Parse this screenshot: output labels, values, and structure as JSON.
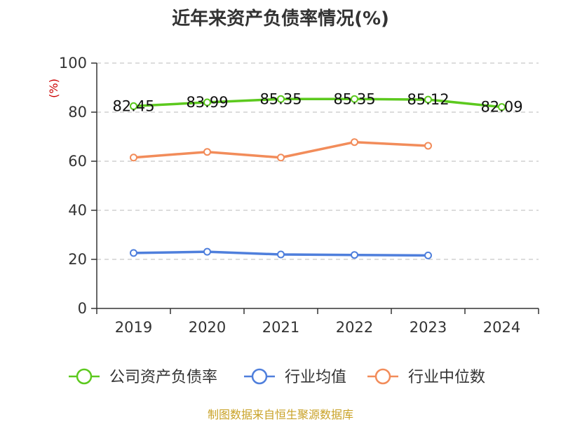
{
  "chart_data": {
    "type": "line",
    "title": "近年来资产负债率情况(%)",
    "ylabel": "(%)",
    "categories": [
      "2019",
      "2020",
      "2021",
      "2022",
      "2023",
      "2024"
    ],
    "ylim": [
      0,
      100
    ],
    "yticks": [
      0,
      20,
      40,
      60,
      80,
      100
    ],
    "grid": true,
    "legend_position": "bottom",
    "series": [
      {
        "name": "公司资产负债率",
        "color": "#5cc91e",
        "values": [
          82.45,
          83.99,
          85.35,
          85.35,
          85.12,
          82.09
        ],
        "labels": [
          "82.45",
          "83.99",
          "85.35",
          "85.35",
          "85.12",
          "82.09"
        ]
      },
      {
        "name": "行业均值",
        "color": "#4f7fdc",
        "values": [
          22.6,
          23.1,
          22.0,
          21.8,
          21.6,
          null
        ]
      },
      {
        "name": "行业中位数",
        "color": "#f28c5a",
        "values": [
          61.5,
          63.8,
          61.5,
          67.8,
          66.3,
          null
        ]
      }
    ]
  },
  "source_note": "制图数据来自恒生聚源数据库"
}
